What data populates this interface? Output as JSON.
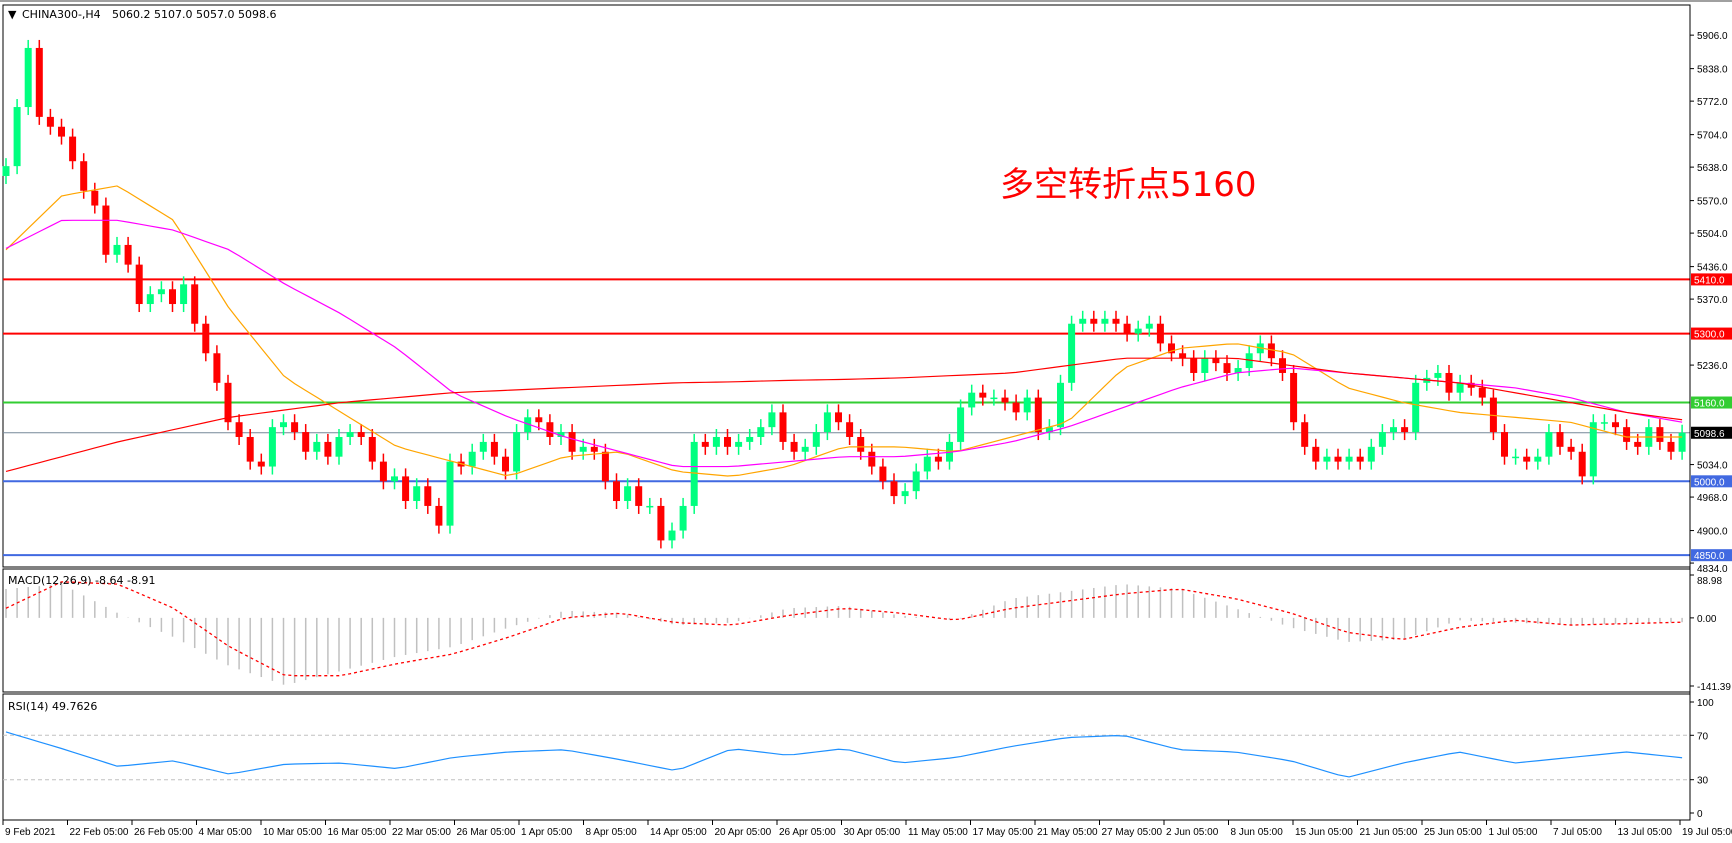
{
  "header": {
    "symbol_label": "CHINA300-,H4",
    "ohlc_label": "5060.2 5107.0 5057.0 5098.6"
  },
  "annotation": {
    "text": "多空转折点5160",
    "color": "#ff0000"
  },
  "chart_data": [
    {
      "type": "candlestick",
      "symbol": "CHINA300-",
      "timeframe": "H4",
      "ylim": [
        4826,
        5953
      ],
      "price_ticks": [
        "5906.0",
        "5838.0",
        "5772.0",
        "5704.0",
        "5638.0",
        "5570.0",
        "5504.0",
        "5436.0",
        "5370.0",
        "5236.0",
        "5034.0",
        "4968.0",
        "4900.0",
        "4834.0"
      ],
      "time_ticks": [
        "9 Feb 2021",
        "22 Feb 05:00",
        "26 Feb 05:00",
        "4 Mar 05:00",
        "10 Mar 05:00",
        "16 Mar 05:00",
        "22 Mar 05:00",
        "26 Mar 05:00",
        "1 Apr 05:00",
        "8 Apr 05:00",
        "14 Apr 05:00",
        "20 Apr 05:00",
        "26 Apr 05:00",
        "30 Apr 05:00",
        "11 May 05:00",
        "17 May 05:00",
        "21 May 05:00",
        "27 May 05:00",
        "2 Jun 05:00",
        "8 Jun 05:00",
        "15 Jun 05:00",
        "21 Jun 05:00",
        "25 Jun 05:00",
        "1 Jul 05:00",
        "7 Jul 05:00",
        "13 Jul 05:00",
        "19 Jul 05:00"
      ],
      "first_open": 5620,
      "closes": [
        5640,
        5760,
        5880,
        5740,
        5720,
        5700,
        5650,
        5590,
        5560,
        5460,
        5480,
        5440,
        5360,
        5380,
        5390,
        5360,
        5400,
        5320,
        5260,
        5200,
        5120,
        5090,
        5040,
        5030,
        5110,
        5120,
        5100,
        5060,
        5080,
        5050,
        5090,
        5100,
        5090,
        5040,
        5000,
        5010,
        4960,
        4990,
        4950,
        4910,
        5040,
        5030,
        5060,
        5080,
        5050,
        5020,
        5100,
        5130,
        5120,
        5090,
        5100,
        5060,
        5070,
        5060,
        5000,
        4960,
        4990,
        4950,
        4950,
        4880,
        4900,
        4950,
        5080,
        5070,
        5090,
        5070,
        5080,
        5090,
        5110,
        5140,
        5080,
        5060,
        5070,
        5100,
        5140,
        5120,
        5090,
        5060,
        5030,
        5000,
        4970,
        4980,
        5020,
        5050,
        5040,
        5080,
        5150,
        5180,
        5170,
        5170,
        5160,
        5140,
        5170,
        5100,
        5110,
        5200,
        5320,
        5330,
        5320,
        5330,
        5320,
        5300,
        5310,
        5320,
        5280,
        5260,
        5250,
        5220,
        5250,
        5240,
        5220,
        5230,
        5260,
        5280,
        5250,
        5220,
        5120,
        5070,
        5040,
        5050,
        5040,
        5050,
        5040,
        5070,
        5100,
        5110,
        5100,
        5200,
        5210,
        5220,
        5180,
        5200,
        5190,
        5170,
        5100,
        5050,
        5050,
        5040,
        5050,
        5100,
        5070,
        5060,
        5010,
        5120,
        5120,
        5110,
        5080,
        5070,
        5110,
        5080,
        5060,
        5098.6
      ],
      "bull_color": "#00ff7f",
      "bear_color": "#ff0000",
      "moving_averages": [
        {
          "color": "#ffa500",
          "values": [
            5470,
            5580,
            5600,
            5530,
            5350,
            5210,
            5140,
            5070,
            5040,
            5010,
            5050,
            5060,
            5020,
            5010,
            5030,
            5070,
            5070,
            5060,
            5090,
            5120,
            5230,
            5270,
            5280,
            5260,
            5190,
            5160,
            5140,
            5130,
            5120,
            5090,
            5090
          ]
        },
        {
          "color": "#ff00ff",
          "values": [
            5473,
            5530,
            5530,
            5510,
            5470,
            5400,
            5340,
            5270,
            5180,
            5130,
            5090,
            5060,
            5030,
            5030,
            5040,
            5050,
            5050,
            5060,
            5080,
            5110,
            5150,
            5190,
            5220,
            5230,
            5220,
            5210,
            5200,
            5190,
            5170,
            5140,
            5120
          ]
        },
        {
          "color": "#ff0000",
          "values": [
            5020,
            5050,
            5080,
            5105,
            5130,
            5145,
            5160,
            5170,
            5180,
            5185,
            5190,
            5195,
            5200,
            5202,
            5205,
            5207,
            5210,
            5215,
            5220,
            5235,
            5250,
            5250,
            5250,
            5235,
            5220,
            5210,
            5200,
            5180,
            5160,
            5140,
            5125
          ]
        }
      ],
      "levels": [
        {
          "value": 5410,
          "label": "5410.0",
          "color": "#ff0000"
        },
        {
          "value": 5300,
          "label": "5300.0",
          "color": "#ff0000"
        },
        {
          "value": 5160,
          "label": "5160.0",
          "color": "#32cd32"
        },
        {
          "value": 5098.6,
          "label": "5098.6",
          "color": "#000000",
          "line_color": "#778899"
        },
        {
          "value": 5000,
          "label": "5000.0",
          "color": "#4169e1"
        },
        {
          "value": 4850,
          "label": "4850.0",
          "color": "#4169e1"
        }
      ]
    },
    {
      "type": "macd",
      "label": "MACD(12,26,9) -8.64 -8.91",
      "ylim": [
        -141.39,
        88.98
      ],
      "ticks": [
        "88.98",
        "0.00",
        "-141.39"
      ],
      "histogram": [
        60,
        70,
        10,
        -40,
        -100,
        -140,
        -110,
        -80,
        -60,
        -20,
        15,
        10,
        -15,
        -10,
        20,
        25,
        5,
        -5,
        40,
        55,
        70,
        60,
        20,
        -20,
        -50,
        -45,
        -5,
        -10,
        -15,
        -12,
        -9
      ],
      "signal": [
        20,
        75,
        70,
        20,
        -60,
        -120,
        -120,
        -95,
        -75,
        -40,
        0,
        10,
        -10,
        -15,
        5,
        20,
        10,
        -5,
        20,
        35,
        50,
        60,
        40,
        10,
        -30,
        -45,
        -20,
        -5,
        -15,
        -12,
        -9
      ],
      "histogram_color": "#c0c0c0",
      "signal_color": "#ff0000"
    },
    {
      "type": "line",
      "label": "RSI(14) 49.7626",
      "ylim": [
        0,
        100
      ],
      "ticks": [
        "100",
        "70",
        "30",
        "0"
      ],
      "levels": [
        70,
        30
      ],
      "values": [
        73,
        58,
        42,
        47,
        35,
        44,
        45,
        40,
        50,
        55,
        57,
        48,
        38,
        58,
        52,
        58,
        45,
        50,
        60,
        68,
        70,
        57,
        55,
        47,
        32,
        45,
        55,
        45,
        50,
        55,
        49.8
      ],
      "color": "#1e90ff"
    }
  ]
}
